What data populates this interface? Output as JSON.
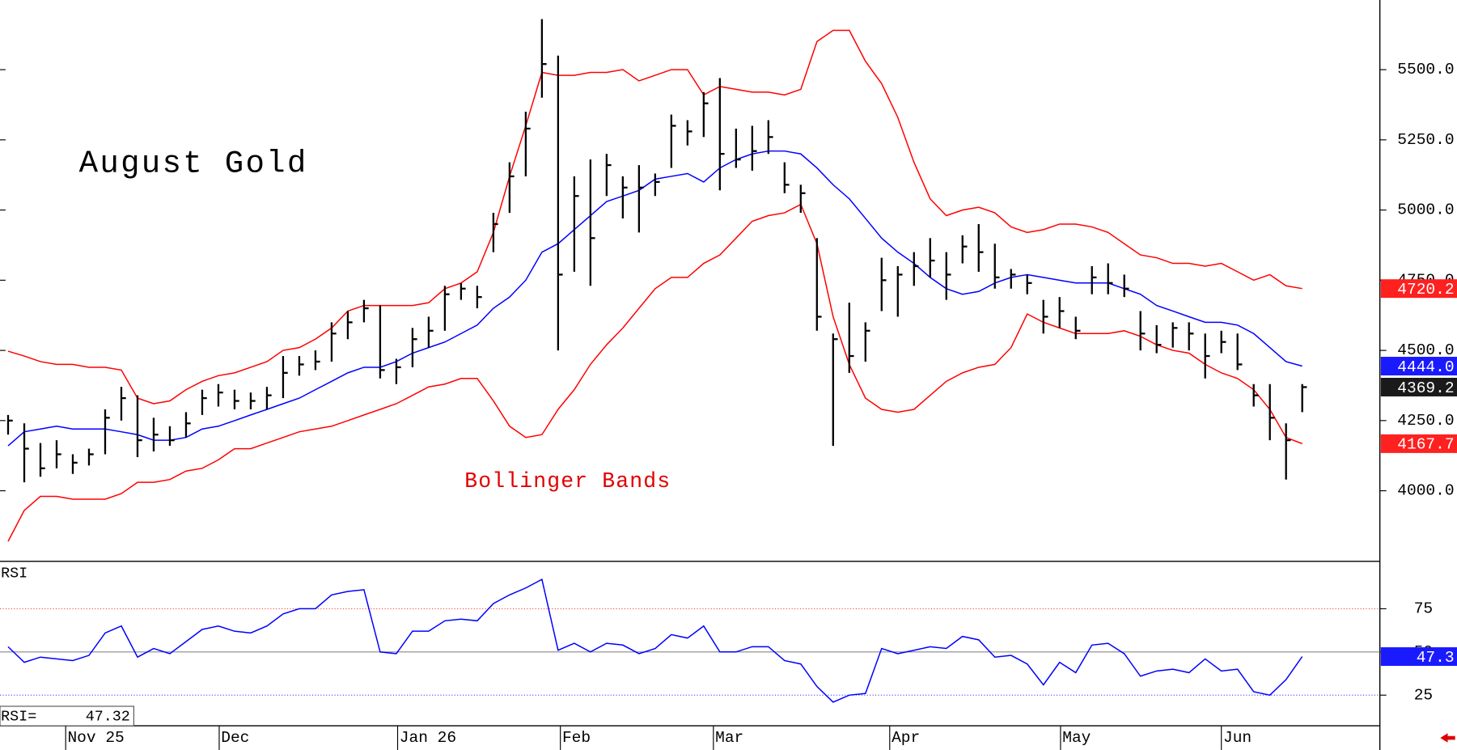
{
  "chart_data": [
    {
      "type": "ohlc",
      "title": "August Gold",
      "annotation": "Bollinger Bands",
      "bar_color": "#000000",
      "xlim": [
        -0.5,
        84.8
      ],
      "ylim": [
        3752,
        5748
      ],
      "yticks": [
        {
          "value": 4000,
          "label": "4000.0"
        },
        {
          "value": 4250,
          "label": "4250.0"
        },
        {
          "value": 4500,
          "label": "4500.0"
        },
        {
          "value": 4750,
          "label": "4750.0"
        },
        {
          "value": 5000,
          "label": "5000.0"
        },
        {
          "value": 5250,
          "label": "5250.0"
        },
        {
          "value": 5500,
          "label": "5500.0"
        }
      ],
      "high": [
        4270,
        4240,
        4170,
        4180,
        4130,
        4150,
        4290,
        4370,
        4340,
        4260,
        4230,
        4280,
        4360,
        4380,
        4360,
        4350,
        4370,
        4480,
        4480,
        4500,
        4600,
        4640,
        4680,
        4660,
        4470,
        4580,
        4620,
        4730,
        4740,
        4730,
        4990,
        5170,
        5350,
        5680,
        5550,
        5120,
        5180,
        5200,
        5120,
        5160,
        5130,
        5340,
        5320,
        5420,
        5470,
        5290,
        5300,
        5320,
        5170,
        5090,
        4900,
        4560,
        4670,
        4600,
        4830,
        4800,
        4850,
        4900,
        4850,
        4910,
        4950,
        4880,
        4790,
        4770,
        4680,
        4690,
        4620,
        4800,
        4810,
        4770,
        4640,
        4590,
        4600,
        4600,
        4560,
        4570,
        4560,
        4380,
        4380,
        4240,
        4380
      ],
      "low": [
        4200,
        4030,
        4050,
        4080,
        4060,
        4090,
        4130,
        4250,
        4120,
        4140,
        4160,
        4190,
        4270,
        4300,
        4290,
        4290,
        4290,
        4330,
        4410,
        4430,
        4460,
        4540,
        4600,
        4400,
        4380,
        4440,
        4510,
        4570,
        4680,
        4650,
        4850,
        4990,
        5120,
        5400,
        4500,
        4780,
        4730,
        5050,
        4970,
        4920,
        5050,
        5150,
        5230,
        5260,
        5070,
        5150,
        5140,
        5200,
        5060,
        4990,
        4570,
        4160,
        4420,
        4460,
        4640,
        4620,
        4730,
        4760,
        4680,
        4810,
        4780,
        4720,
        4720,
        4700,
        4560,
        4580,
        4540,
        4700,
        4700,
        4690,
        4500,
        4490,
        4510,
        4500,
        4400,
        4490,
        4430,
        4300,
        4180,
        4040,
        4280
      ],
      "close": [
        4250,
        4150,
        4080,
        4130,
        4100,
        4130,
        4260,
        4330,
        4180,
        4200,
        4180,
        4240,
        4330,
        4350,
        4320,
        4320,
        4340,
        4420,
        4450,
        4460,
        4560,
        4600,
        4650,
        4430,
        4440,
        4540,
        4570,
        4700,
        4720,
        4690,
        4950,
        5120,
        5290,
        5520,
        4770,
        5050,
        4900,
        5160,
        5080,
        5080,
        5100,
        5300,
        5280,
        5380,
        5200,
        5180,
        5210,
        5260,
        5090,
        5060,
        4620,
        4540,
        4480,
        4570,
        4750,
        4770,
        4800,
        4820,
        4770,
        4870,
        4850,
        4760,
        4770,
        4740,
        4620,
        4640,
        4570,
        4760,
        4740,
        4720,
        4560,
        4520,
        4580,
        4560,
        4480,
        4530,
        4450,
        4340,
        4260,
        4180,
        4369.2
      ],
      "bands": {
        "upper": {
          "color": "#ff0000",
          "values": [
            4497,
            4480,
            4460,
            4450,
            4450,
            4440,
            4440,
            4430,
            4330,
            4310,
            4320,
            4360,
            4390,
            4410,
            4420,
            4440,
            4460,
            4500,
            4510,
            4540,
            4580,
            4640,
            4660,
            4660,
            4660,
            4660,
            4670,
            4720,
            4740,
            4780,
            4920,
            5120,
            5300,
            5490,
            5480,
            5480,
            5490,
            5490,
            5500,
            5460,
            5480,
            5500,
            5500,
            5410,
            5440,
            5430,
            5420,
            5420,
            5410,
            5430,
            5600,
            5640,
            5640,
            5530,
            5450,
            5330,
            5170,
            5040,
            4980,
            5000,
            5010,
            4990,
            4940,
            4920,
            4930,
            4950,
            4950,
            4940,
            4920,
            4880,
            4840,
            4830,
            4810,
            4810,
            4800,
            4810,
            4780,
            4750,
            4770,
            4730,
            4720.2
          ]
        },
        "middle": {
          "color": "#0000ff",
          "values": [
            4160,
            4210,
            4220,
            4230,
            4220,
            4220,
            4220,
            4210,
            4200,
            4180,
            4180,
            4190,
            4220,
            4230,
            4250,
            4270,
            4290,
            4310,
            4330,
            4360,
            4390,
            4420,
            4440,
            4440,
            4460,
            4490,
            4510,
            4530,
            4560,
            4590,
            4650,
            4690,
            4750,
            4850,
            4880,
            4930,
            4980,
            5030,
            5050,
            5070,
            5110,
            5120,
            5130,
            5100,
            5150,
            5180,
            5200,
            5210,
            5210,
            5200,
            5150,
            5090,
            5040,
            4970,
            4900,
            4850,
            4810,
            4760,
            4720,
            4700,
            4710,
            4740,
            4760,
            4770,
            4760,
            4750,
            4740,
            4740,
            4740,
            4720,
            4700,
            4660,
            4640,
            4620,
            4600,
            4600,
            4590,
            4560,
            4510,
            4460,
            4444.0
          ]
        },
        "lower": {
          "color": "#ff0000",
          "values": [
            3820,
            3930,
            3980,
            3980,
            3970,
            3970,
            3970,
            3990,
            4030,
            4030,
            4040,
            4070,
            4080,
            4110,
            4150,
            4150,
            4170,
            4190,
            4210,
            4220,
            4230,
            4250,
            4270,
            4290,
            4310,
            4340,
            4370,
            4380,
            4400,
            4400,
            4320,
            4230,
            4190,
            4200,
            4290,
            4360,
            4450,
            4520,
            4580,
            4650,
            4720,
            4760,
            4760,
            4810,
            4840,
            4900,
            4960,
            4980,
            4990,
            5020,
            4880,
            4620,
            4450,
            4330,
            4290,
            4280,
            4290,
            4340,
            4390,
            4420,
            4440,
            4450,
            4510,
            4630,
            4600,
            4580,
            4560,
            4560,
            4560,
            4570,
            4550,
            4520,
            4500,
            4490,
            4450,
            4420,
            4400,
            4360,
            4290,
            4190,
            4167.7
          ]
        }
      },
      "markers": [
        {
          "value": 4720.2,
          "label": "4720.2",
          "color": "#ff2020"
        },
        {
          "value": 4444.0,
          "label": "4444.0",
          "color": "#1a1aff"
        },
        {
          "value": 4369.2,
          "label": "4369.2",
          "color": "#1a1a1a"
        },
        {
          "value": 4167.7,
          "label": "4167.7",
          "color": "#ff2020"
        }
      ]
    },
    {
      "type": "line",
      "title": "RSI",
      "current_label": "RSI=",
      "current_value": 47.32,
      "color": "#0000ff",
      "xlim": [
        -0.5,
        84.8
      ],
      "ylim": [
        7.8,
        101.9
      ],
      "yticks": [
        25,
        50,
        75
      ],
      "reference_lines": [
        {
          "value": 75,
          "color": "#ff4040"
        },
        {
          "value": 50,
          "color": "#888888"
        },
        {
          "value": 25,
          "color": "#4040ff"
        }
      ],
      "values": [
        53,
        44,
        47,
        46,
        45,
        48,
        61,
        65,
        47,
        52,
        49,
        56,
        63,
        65,
        62,
        61,
        65,
        72,
        75,
        75,
        83,
        85,
        86,
        50,
        49,
        62,
        62,
        68,
        69,
        68,
        78,
        83,
        87,
        92,
        51,
        55,
        50,
        55,
        54,
        49,
        52,
        60,
        58,
        65,
        50,
        50,
        53,
        53,
        45,
        43,
        30,
        21,
        25,
        26,
        52,
        49,
        51,
        53,
        52,
        59,
        57,
        47,
        48,
        43,
        31,
        44,
        38,
        54,
        55,
        49,
        36,
        39,
        40,
        38,
        46,
        39,
        40,
        27,
        25,
        34,
        47.32
      ],
      "marker": {
        "value": 47.32,
        "label": "47.3",
        "color": "#1a1aff"
      },
      "xticks": [
        {
          "value": 3.56,
          "label": "Nov 25"
        },
        {
          "value": 13.05,
          "label": "Dec"
        },
        {
          "value": 24.08,
          "label": "Jan 26"
        },
        {
          "value": 34.14,
          "label": "Feb"
        },
        {
          "value": 43.6,
          "label": "Mar"
        },
        {
          "value": 54.5,
          "label": "Apr"
        },
        {
          "value": 65.06,
          "label": "May"
        },
        {
          "value": 75.0,
          "label": "Jun"
        }
      ]
    }
  ]
}
